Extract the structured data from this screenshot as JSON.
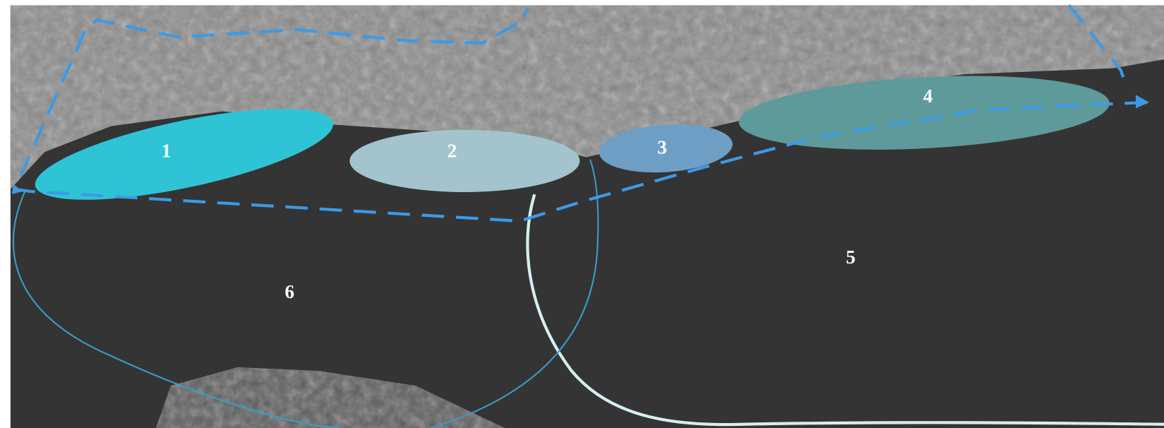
{
  "zones": [
    {
      "label": "1"
    },
    {
      "label": "2"
    },
    {
      "label": "3"
    },
    {
      "label": "4"
    },
    {
      "label": "5"
    },
    {
      "label": "6"
    }
  ]
}
